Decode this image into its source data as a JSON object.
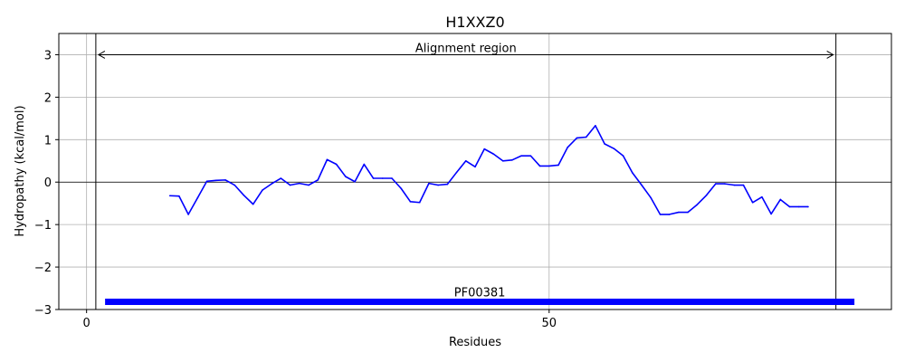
{
  "chart_data": {
    "type": "line",
    "title": "H1XXZ0",
    "xlabel": "Residues",
    "ylabel": "Hydropathy (kcal/mol)",
    "xlim": [
      -3,
      87
    ],
    "ylim": [
      -3,
      3.5
    ],
    "xticks": [
      0,
      50
    ],
    "xtick_labels": [
      "0",
      "50"
    ],
    "yticks": [
      -3,
      -2,
      -1,
      0,
      1,
      2,
      3
    ],
    "ytick_labels": [
      "−3",
      "−2",
      "−1",
      "0",
      "1",
      "2",
      "3"
    ],
    "grid": true,
    "series": [
      {
        "color": "#0000ff",
        "x": [
          9,
          10,
          11,
          12,
          13,
          14,
          15,
          16,
          17,
          18,
          19,
          20,
          21,
          22,
          23,
          24,
          25,
          26,
          27,
          28,
          29,
          30,
          31,
          32,
          33,
          34,
          35,
          36,
          37,
          38,
          39,
          40,
          41,
          42,
          43,
          44,
          45,
          46,
          47,
          48,
          49,
          50,
          51,
          52,
          53,
          54,
          55,
          56,
          57,
          58,
          59,
          60,
          61,
          62,
          63,
          64,
          65,
          66,
          67,
          68,
          69,
          70,
          71,
          72,
          73,
          74,
          75,
          76,
          77,
          78
        ],
        "y": [
          -0.32,
          -0.33,
          -0.76,
          -0.37,
          0.02,
          0.04,
          0.05,
          -0.07,
          -0.31,
          -0.52,
          -0.19,
          -0.04,
          0.09,
          -0.07,
          -0.03,
          -0.07,
          0.05,
          0.53,
          0.42,
          0.13,
          0.01,
          0.42,
          0.09,
          0.09,
          0.09,
          -0.15,
          -0.46,
          -0.48,
          -0.03,
          -0.07,
          -0.05,
          0.23,
          0.5,
          0.36,
          0.78,
          0.66,
          0.5,
          0.52,
          0.62,
          0.62,
          0.38,
          0.38,
          0.4,
          0.82,
          1.04,
          1.06,
          1.33,
          0.9,
          0.79,
          0.62,
          0.22,
          -0.07,
          -0.37,
          -0.76,
          -0.76,
          -0.71,
          -0.71,
          -0.53,
          -0.31,
          -0.04,
          -0.04,
          -0.07,
          -0.07,
          -0.48,
          -0.35,
          -0.75,
          -0.41,
          -0.58,
          -0.58,
          -0.58
        ]
      }
    ],
    "alignment_region": {
      "label": "Alignment region",
      "start": 1,
      "end": 81,
      "y": 3
    },
    "domain_bar": {
      "label": "PF00381",
      "start": 2,
      "end": 83,
      "y": -2.82,
      "color": "#0000ff"
    }
  }
}
